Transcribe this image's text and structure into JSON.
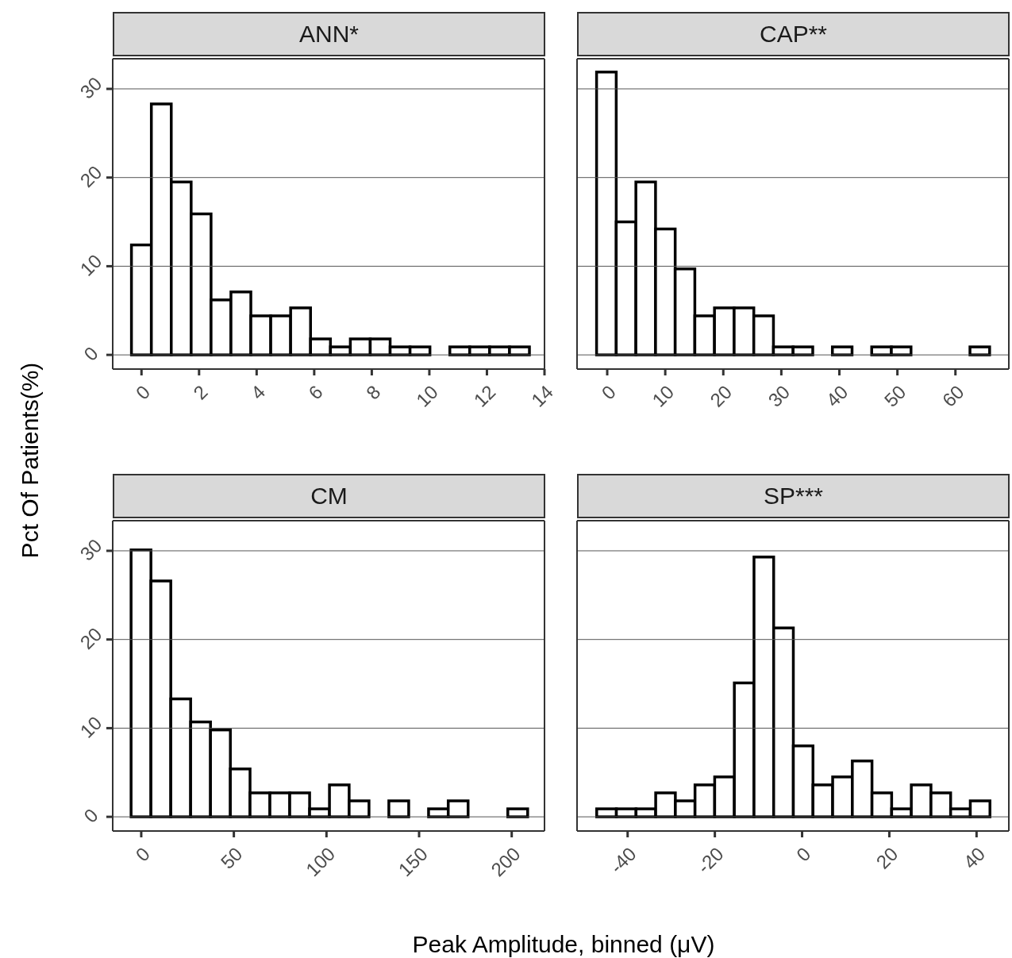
{
  "chart_data": [
    {
      "type": "histogram",
      "title": "ANN*",
      "ylabel": "Pct Of Patients(%)",
      "bins": [
        -0.35,
        0.34,
        1.03,
        1.72,
        2.41,
        3.1,
        3.79,
        4.48,
        5.17,
        5.86,
        6.55,
        7.24,
        7.93,
        8.62,
        9.31,
        10,
        10.69,
        11.38,
        12.07,
        12.76,
        13.45
      ],
      "values": [
        12.4,
        28.3,
        19.5,
        15.9,
        6.2,
        7.1,
        4.4,
        4.4,
        5.3,
        1.8,
        0.9,
        1.8,
        1.8,
        0.9,
        0.9,
        0,
        0.9,
        0.9,
        0.9,
        0.9
      ],
      "color": "#ffffff",
      "xlim": [
        -1,
        14
      ],
      "xticks": [
        0,
        2,
        4,
        6,
        8,
        10,
        12,
        14
      ],
      "ylim": [
        -1.6,
        33.4
      ],
      "yticks": [
        0,
        10,
        20,
        30
      ],
      "grid": "y"
    },
    {
      "type": "histogram",
      "title": "CAP**",
      "bins": [
        -1.84,
        1.54,
        4.92,
        8.3,
        11.68,
        15.06,
        18.44,
        21.82,
        25.2,
        28.58,
        31.96,
        35.34,
        38.72,
        42.1,
        45.48,
        48.86,
        52.24,
        55.62,
        59,
        62.38,
        65.76
      ],
      "values": [
        31.9,
        15,
        19.5,
        14.2,
        9.7,
        4.4,
        5.3,
        5.3,
        4.4,
        0.9,
        0.9,
        0,
        0.9,
        0,
        0.9,
        0.9,
        0,
        0,
        0,
        0.9
      ],
      "color": "#ffffff",
      "xlim": [
        -5.2,
        69.2
      ],
      "xticks": [
        0,
        10,
        20,
        30,
        40,
        50,
        60
      ],
      "ylim": [
        -1.6,
        33.4
      ],
      "yticks": [
        0,
        10,
        20,
        30
      ],
      "grid": "y",
      "tick_labels": "x"
    },
    {
      "type": "histogram",
      "title": "CM",
      "xlabel": "Peak Amplitude, binned (μV)",
      "bins": [
        -5.5,
        5.2,
        15.9,
        26.6,
        37.3,
        48,
        58.6,
        69.3,
        80,
        90.7,
        101.4,
        112,
        122.7,
        133.4,
        144.1,
        154.8,
        165.4,
        176.1,
        186.8,
        197.5,
        208.2
      ],
      "values": [
        30.1,
        26.6,
        13.3,
        10.7,
        9.8,
        5.4,
        2.7,
        2.7,
        2.7,
        0.9,
        3.6,
        1.8,
        0,
        1.8,
        0,
        0.9,
        1.8,
        0,
        0,
        0.9
      ],
      "color": "#ffffff",
      "xlim": [
        -15.4,
        217.7
      ],
      "xticks": [
        0,
        50,
        100,
        150,
        200
      ],
      "ylim": [
        -1.6,
        33.4
      ],
      "yticks": [
        0,
        10,
        20,
        30
      ],
      "grid": "y"
    },
    {
      "type": "histogram",
      "title": "SP***",
      "bins": [
        -47.1,
        -42.6,
        -38.1,
        -33.6,
        -29.1,
        -24.6,
        -20.1,
        -15.6,
        -11.1,
        -6.6,
        -2.1,
        2.4,
        6.9,
        11.4,
        15.9,
        20.4,
        24.9,
        29.4,
        33.9,
        38.4,
        42.9
      ],
      "values": [
        0.9,
        0.9,
        0.9,
        2.7,
        1.8,
        3.6,
        4.5,
        15.1,
        29.3,
        21.3,
        8,
        3.6,
        4.5,
        6.3,
        2.7,
        0.9,
        3.6,
        2.7,
        0.9,
        1.8
      ],
      "color": "#ffffff",
      "xlim": [
        -51.6,
        47.4
      ],
      "xticks": [
        -40,
        -20,
        0,
        20,
        40
      ],
      "ylim": [
        -1.6,
        33.4
      ],
      "yticks": [
        0,
        10,
        20,
        30
      ],
      "grid": "y",
      "tick_labels": "x"
    }
  ]
}
